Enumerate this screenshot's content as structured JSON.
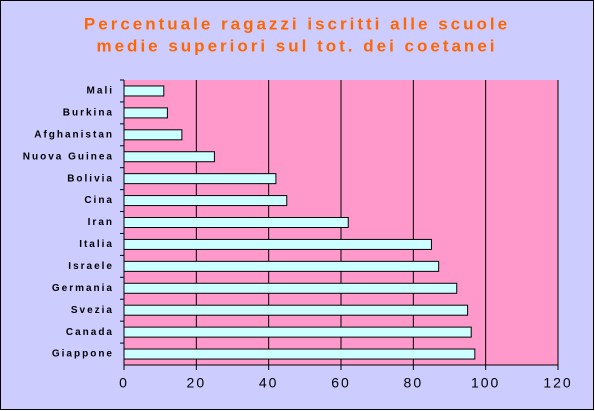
{
  "chart_data": {
    "type": "bar",
    "orientation": "horizontal",
    "title": [
      "Percentuale ragazzi iscritti alle scuole",
      "medie superiori sul tot. dei coetanei"
    ],
    "categories": [
      "Mali",
      "Burkina",
      "Afghanistan",
      "Nuova Guinea",
      "Bolivia",
      "Cina",
      "Iran",
      "Italia",
      "Israele",
      "Germania",
      "Svezia",
      "Canada",
      "Giappone"
    ],
    "values": [
      11,
      12,
      16,
      25,
      42,
      45,
      62,
      85,
      87,
      92,
      95,
      96,
      97
    ],
    "color": "#ccffff",
    "plot_background": "#ff99cc",
    "background": "#ccccff",
    "title_color": "#ff6600",
    "xlim": [
      0,
      120
    ],
    "xticks": [
      0,
      20,
      40,
      60,
      80,
      100,
      120
    ],
    "grid": true
  }
}
